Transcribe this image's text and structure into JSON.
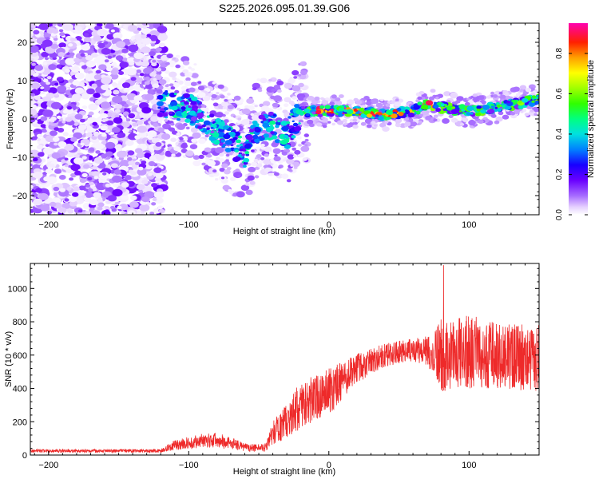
{
  "title": "S225.2026.095.01.39.G06",
  "chart_data": [
    {
      "type": "heatmap",
      "xlabel": "Height of straight line (km)",
      "ylabel": "Frequency (Hz)",
      "xlim": [
        -213,
        150
      ],
      "ylim": [
        -25,
        25
      ],
      "xticks": [
        -200,
        -100,
        0,
        100
      ],
      "yticks": [
        -20,
        -10,
        0,
        10,
        20
      ],
      "colorbar": {
        "label": "Normalized spectral amplitude",
        "range": [
          0,
          0.95
        ],
        "ticks": [
          0.0,
          0.2,
          0.4,
          0.6,
          0.8
        ]
      },
      "ridge": {
        "x": [
          -120,
          -100,
          -80,
          -60,
          -50,
          -40,
          -30,
          -20,
          0,
          20,
          40,
          60,
          70,
          80,
          100,
          120,
          150
        ],
        "y": [
          4,
          3,
          -3,
          -9,
          -2,
          -2,
          -4,
          2,
          2,
          2,
          1,
          2,
          4,
          3,
          2,
          3,
          5
        ]
      }
    },
    {
      "type": "line",
      "xlabel": "Height of straight line (km)",
      "ylabel": "SNR (10 * v/v)",
      "xlim": [
        -213,
        150
      ],
      "ylim": [
        0,
        1150
      ],
      "xticks": [
        -200,
        -100,
        0,
        100
      ],
      "yticks": [
        0,
        200,
        400,
        600,
        800,
        1000
      ],
      "series": [
        {
          "name": "SNR",
          "color": "#ee2a2a",
          "envelope_x": [
            -213,
            -120,
            -110,
            -90,
            -80,
            -70,
            -60,
            -45,
            -40,
            -30,
            -20,
            0,
            20,
            40,
            60,
            70,
            80,
            100,
            120,
            150
          ],
          "envelope_y": [
            25,
            25,
            60,
            85,
            90,
            70,
            45,
            45,
            130,
            210,
            300,
            380,
            520,
            600,
            630,
            630,
            600,
            620,
            600,
            580
          ],
          "envelope_noise": [
            10,
            10,
            30,
            45,
            45,
            40,
            25,
            25,
            70,
            110,
            140,
            140,
            90,
            70,
            70,
            90,
            220,
            220,
            200,
            200
          ]
        }
      ]
    }
  ]
}
